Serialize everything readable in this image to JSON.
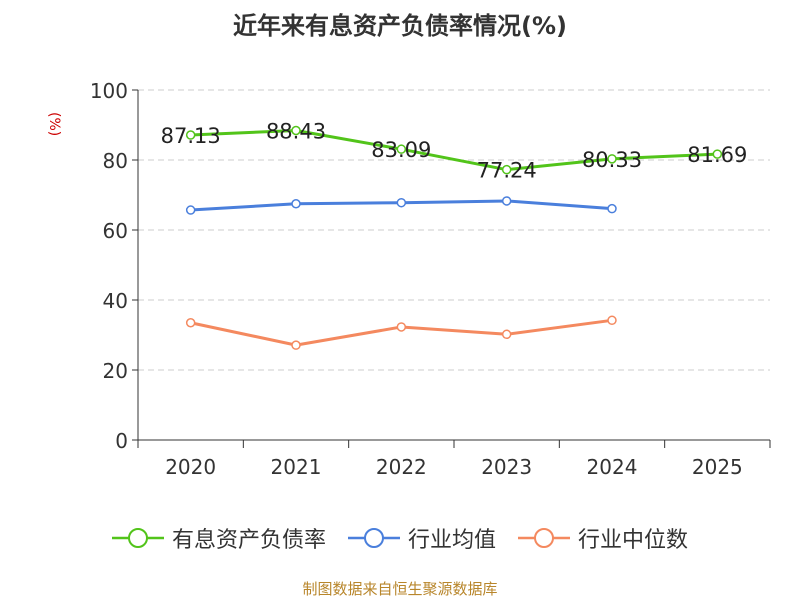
{
  "chart_data": {
    "type": "line",
    "title": "近年来有息资产负债率情况(%)",
    "ylabel": "(%)",
    "xlabel": "",
    "categories": [
      "2020",
      "2021",
      "2022",
      "2023",
      "2024",
      "2025"
    ],
    "ylim": [
      0,
      100
    ],
    "yticks": [
      0,
      20,
      40,
      60,
      80,
      100
    ],
    "grid": true,
    "legend_position": "bottom",
    "series": [
      {
        "name": "有息资产负债率",
        "color": "#52c41a",
        "values": [
          87.13,
          88.43,
          83.09,
          77.24,
          80.33,
          81.69
        ],
        "labels": [
          "87.13",
          "88.43",
          "83.09",
          "77.24",
          "80.33",
          "81.69"
        ]
      },
      {
        "name": "行业均值",
        "color": "#4a7fdc",
        "values": [
          65.7,
          67.5,
          67.8,
          68.3,
          66.1,
          null
        ]
      },
      {
        "name": "行业中位数",
        "color": "#f4895f",
        "values": [
          33.5,
          27.1,
          32.3,
          30.2,
          34.2,
          null
        ]
      }
    ]
  },
  "source": "制图数据来自恒生聚源数据库"
}
